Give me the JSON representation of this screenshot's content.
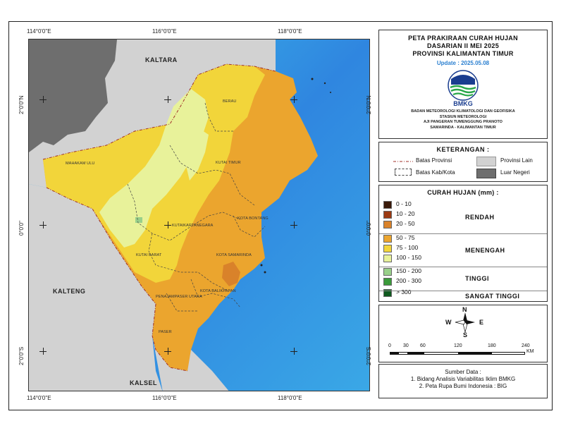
{
  "map_title": [
    "PETA PRAKIRAAN CURAH HUJAN",
    "DASARIAN II MEI 2025",
    "PROVINSI KALIMANTAN TIMUR"
  ],
  "update": "Update : 2025.05.08",
  "logo_text": "BMKG",
  "institution": [
    "BADAN METEOROLOGI KLIMATOLOGI DAN GEOFISIKA",
    "STASIUN METEOROLOGI",
    "AJI PANGERAN TUMENGGUNG PRANOTO",
    "SAMARINDA - KALIMANTAN TIMUR"
  ],
  "grid": {
    "top_labels": [
      "114°0'0\"E",
      "116°0'0\"E",
      "118°0'0\"E"
    ],
    "bottom_labels": [
      "114°0'0\"E",
      "116°0'0\"E",
      "118°0'0\"E"
    ],
    "left_labels": [
      "2°0'0\"N",
      "0°0'0\"",
      "2°0'0\"S"
    ],
    "right_labels": [
      "2°0'0\"N",
      "0°0'0\"",
      "2°0'0\"S"
    ]
  },
  "provinces": {
    "kaltara": "KALTARA",
    "kalteng": "KALTENG",
    "kalsel": "KALSEL"
  },
  "regencies": {
    "berau": "BERAU",
    "mahakam_ulu": "MAHAKAM ULU",
    "kutai_timur": "KUTAI TIMUR",
    "kota_bontang": "KOTA BONTANG",
    "kutai_kartanegara": "KUTAIKARTANEGARA",
    "kutai_barat": "KUTAI BARAT",
    "kota_samarinda": "KOTA SAMARINDA",
    "kota_balikpapan": "KOTA BALIKPAPAN",
    "penajam_paser_utara": "PENAJAMPASER UTARA",
    "paser": "PASER"
  },
  "keterangan": {
    "title": "KETERANGAN :",
    "batas_provinsi": "Batas Provinsi",
    "batas_kab": "Batas Kab/Kota",
    "provinsi_lain": "Provinsi Lain",
    "luar_negeri": "Luar Negeri",
    "provinsi_lain_color": "#d2d2d2",
    "luar_negeri_color": "#6e6e6e"
  },
  "legend": {
    "title": "CURAH HUJAN (mm) :",
    "classes": [
      {
        "label": "0 - 10",
        "color": "#3a1a0a"
      },
      {
        "label": "10 - 20",
        "color": "#9b3a12"
      },
      {
        "label": "20 - 50",
        "color": "#d9822a"
      },
      {
        "label": "50 - 75",
        "color": "#eba52e"
      },
      {
        "label": "75 - 100",
        "color": "#f2d53a"
      },
      {
        "label": "100 - 150",
        "color": "#e8f29a"
      },
      {
        "label": "150 - 200",
        "color": "#99d08a"
      },
      {
        "label": "200 - 300",
        "color": "#3a9a3a"
      },
      {
        "label": "> 300",
        "color": "#0f5a1f"
      }
    ],
    "categories": [
      "RENDAH",
      "MENENGAH",
      "TINGGI",
      "SANGAT TINGGI"
    ]
  },
  "north_arrow": {
    "n": "N",
    "s": "S",
    "e": "E",
    "w": "W"
  },
  "scale": {
    "ticks": [
      "0",
      "30",
      "60",
      "120",
      "180",
      "240"
    ],
    "unit": "KM"
  },
  "source": [
    "Sumber Data :",
    "1. Bidang Analisis Variabilitas Iklim BMKG",
    "2. Peta Rupa Bumi Indonesia : BIG"
  ],
  "colors": {
    "sea": "#2f86e0",
    "foreign": "#6e6e6e",
    "other_province": "#d2d2d2"
  }
}
